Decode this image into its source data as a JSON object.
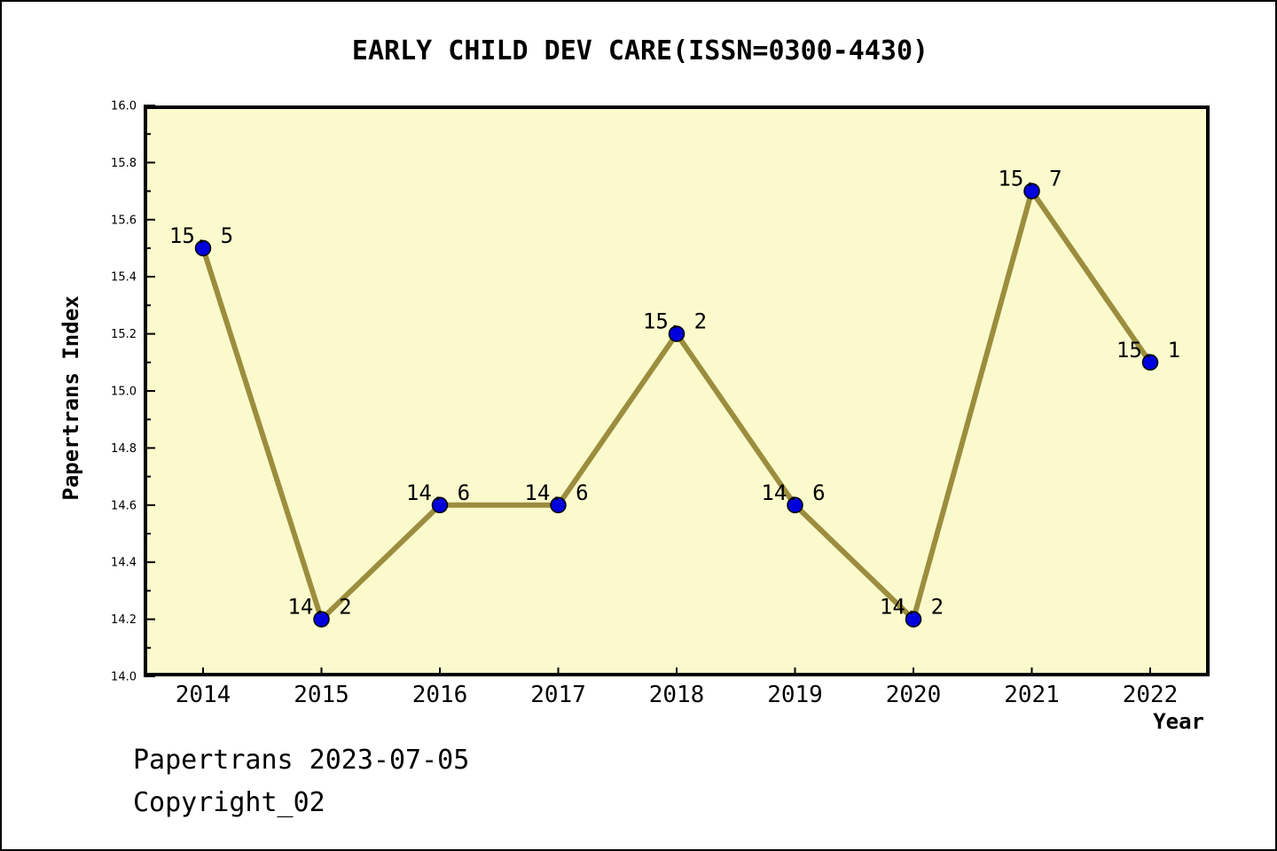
{
  "title": "EARLY CHILD DEV CARE(ISSN=0300-4430)",
  "ylabel": "Papertrans Index",
  "xlabel": "Year",
  "footer": {
    "line1": "Papertrans 2023-07-05",
    "line2": "Copyright_02"
  },
  "colors": {
    "plot_background": "#FAFACD",
    "line": "#9C8D3E",
    "marker_fill": "#0000DD",
    "marker_edge": "#000000",
    "frame": "#000000",
    "text": "#000000"
  },
  "chart_data": {
    "type": "line",
    "title": "EARLY CHILD DEV CARE(ISSN=0300-4430)",
    "xlabel": "Year",
    "ylabel": "Papertrans Index",
    "categories": [
      "2014",
      "2015",
      "2016",
      "2017",
      "2018",
      "2019",
      "2020",
      "2021",
      "2022"
    ],
    "values": [
      15.5,
      14.2,
      14.6,
      14.6,
      15.2,
      14.6,
      14.2,
      15.7,
      15.1
    ],
    "point_labels": [
      "15. 5",
      "14. 2",
      "14. 6",
      "14. 6",
      "15. 2",
      "14. 6",
      "14. 2",
      "15. 7",
      "15. 1"
    ],
    "ylim": [
      14.0,
      16.0
    ],
    "y_major_ticks": [
      "14.0",
      "14.2",
      "14.4",
      "14.6",
      "14.8",
      "15.0",
      "15.2",
      "15.4",
      "15.6",
      "15.8",
      "16.0"
    ],
    "y_major_step": 0.2,
    "y_minor_step": 0.1,
    "grid": false,
    "legend": null
  }
}
